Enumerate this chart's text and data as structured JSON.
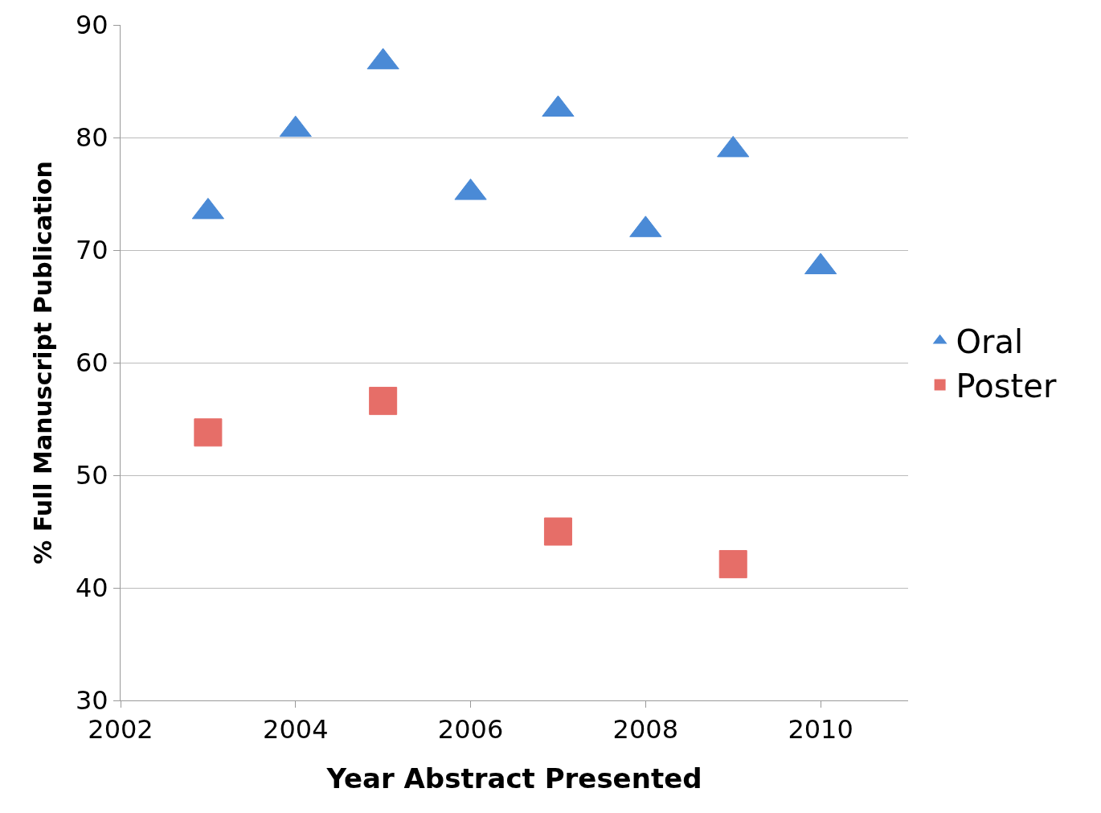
{
  "chart_data": {
    "type": "scatter",
    "xlabel": "Year Abstract Presented",
    "ylabel": "% Full Manuscript Publication",
    "series": [
      {
        "name": "Oral",
        "color": "#4a8ad6",
        "marker": "triangle",
        "x": [
          2003,
          2004,
          2005,
          2006,
          2007,
          2008,
          2009,
          2010
        ],
        "values": [
          73.4,
          80.7,
          86.7,
          75.1,
          82.5,
          71.8,
          78.9,
          68.5
        ]
      },
      {
        "name": "Poster",
        "color": "#e66e68",
        "marker": "square",
        "x": [
          2003,
          2005,
          2007,
          2009
        ],
        "values": [
          53.8,
          56.6,
          45.0,
          42.1
        ]
      }
    ],
    "xlim": [
      2002,
      2011
    ],
    "xticks": [
      2002,
      2004,
      2006,
      2008,
      2010
    ],
    "ylim": [
      30,
      90
    ],
    "yticks": [
      30,
      40,
      50,
      60,
      70,
      80,
      90
    ],
    "grid": "y",
    "legend": "right"
  }
}
